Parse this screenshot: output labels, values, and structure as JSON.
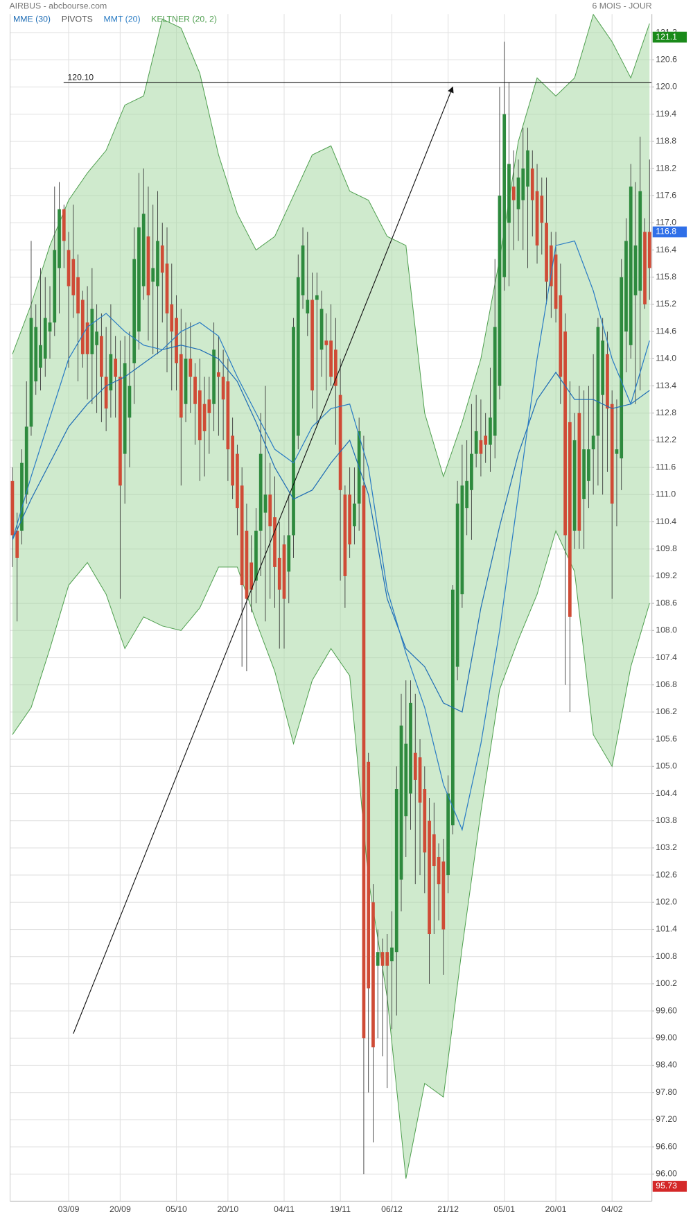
{
  "chart_data": {
    "type": "candlestick",
    "title": "AIRBUS - abcbourse.com",
    "subtitle": "6 MOIS - JOUR",
    "categories": [
      null,
      null,
      null,
      null,
      null,
      null,
      null,
      null,
      null,
      null,
      null,
      null,
      "03/09",
      null,
      null,
      null,
      null,
      null,
      null,
      null,
      null,
      null,
      null,
      "20/09",
      null,
      null,
      null,
      null,
      null,
      null,
      null,
      null,
      null,
      null,
      null,
      "05/10",
      null,
      null,
      null,
      null,
      null,
      null,
      null,
      null,
      null,
      null,
      "20/10",
      null,
      null,
      null,
      null,
      null,
      null,
      null,
      null,
      null,
      null,
      null,
      "04/11",
      null,
      null,
      null,
      null,
      null,
      null,
      null,
      null,
      null,
      null,
      null,
      "19/11",
      null,
      null,
      null,
      null,
      null,
      null,
      null,
      null,
      null,
      null,
      "06/12",
      null,
      null,
      null,
      null,
      null,
      null,
      null,
      null,
      null,
      null,
      null,
      "21/12",
      null,
      null,
      null,
      null,
      null,
      null,
      null,
      null,
      null,
      null,
      null,
      "05/01",
      null,
      null,
      null,
      null,
      null,
      null,
      null,
      null,
      null,
      null,
      "20/01",
      null,
      null,
      null,
      null,
      null,
      null,
      null,
      null,
      null,
      null,
      null,
      "04/02",
      null,
      null,
      null,
      null,
      null,
      null,
      null,
      null
    ],
    "ohlc": [
      [
        111.3,
        111.6,
        109.4,
        110.1
      ],
      [
        110.2,
        110.6,
        108.2,
        109.6
      ],
      [
        110.2,
        112.0,
        109.9,
        111.7
      ],
      [
        111.0,
        113.5,
        110.8,
        112.5
      ],
      [
        112.5,
        116.6,
        112.3,
        114.9
      ],
      [
        113.5,
        115.2,
        113.2,
        114.7
      ],
      [
        113.8,
        116.0,
        113.3,
        114.3
      ],
      [
        114.0,
        115.8,
        113.6,
        114.9
      ],
      [
        114.6,
        115.6,
        114.0,
        114.8
      ],
      [
        114.8,
        117.8,
        114.5,
        116.4
      ],
      [
        116.0,
        117.9,
        115.0,
        117.3
      ],
      [
        117.3,
        117.4,
        116.0,
        116.6
      ],
      [
        116.4,
        116.8,
        113.8,
        115.6
      ],
      [
        116.2,
        117.4,
        114.9,
        115.4
      ],
      [
        115.8,
        116.3,
        113.5,
        115.0
      ],
      [
        115.3,
        115.5,
        113.8,
        114.1
      ],
      [
        114.8,
        115.6,
        113.1,
        114.1
      ],
      [
        114.1,
        116.0,
        113.0,
        115.1
      ],
      [
        114.3,
        115.2,
        112.8,
        114.6
      ],
      [
        114.5,
        115.0,
        112.6,
        113.6
      ],
      [
        113.6,
        114.7,
        112.4,
        112.9
      ],
      [
        113.3,
        115.2,
        112.7,
        114.1
      ],
      [
        114.0,
        114.5,
        112.7,
        113.6
      ],
      [
        113.6,
        114.4,
        108.7,
        111.2
      ],
      [
        111.9,
        114.5,
        110.8,
        113.9
      ],
      [
        112.7,
        114.6,
        111.6,
        113.4
      ],
      [
        113.9,
        116.9,
        113.0,
        116.2
      ],
      [
        114.6,
        118.1,
        114.2,
        116.9
      ],
      [
        115.6,
        118.2,
        115.3,
        117.2
      ],
      [
        116.7,
        117.8,
        114.4,
        115.4
      ],
      [
        115.7,
        117.4,
        114.1,
        116.0
      ],
      [
        115.6,
        117.7,
        114.1,
        116.6
      ],
      [
        116.5,
        117.0,
        114.8,
        115.9
      ],
      [
        116.1,
        116.9,
        113.7,
        115.0
      ],
      [
        115.2,
        116.1,
        113.3,
        114.6
      ],
      [
        114.9,
        115.4,
        113.3,
        113.9
      ],
      [
        114.1,
        115.1,
        111.2,
        112.7
      ],
      [
        113.0,
        114.8,
        112.6,
        114.0
      ],
      [
        114.0,
        114.8,
        112.8,
        113.6
      ],
      [
        113.6,
        113.9,
        112.1,
        113.0
      ],
      [
        113.3,
        114.0,
        111.3,
        112.2
      ],
      [
        113.0,
        113.6,
        111.4,
        112.4
      ],
      [
        113.1,
        113.6,
        111.9,
        112.8
      ],
      [
        113.0,
        114.8,
        112.4,
        114.2
      ],
      [
        113.7,
        114.5,
        112.3,
        113.6
      ],
      [
        113.6,
        114.2,
        112.2,
        113.1
      ],
      [
        113.5,
        114.0,
        111.3,
        112.0
      ],
      [
        112.3,
        112.7,
        110.9,
        111.2
      ],
      [
        111.9,
        112.1,
        110.1,
        110.7
      ],
      [
        111.2,
        111.6,
        107.2,
        109.0
      ],
      [
        110.2,
        110.8,
        107.1,
        108.7
      ],
      [
        109.5,
        110.1,
        108.4,
        108.9
      ],
      [
        109.1,
        110.7,
        108.6,
        110.2
      ],
      [
        110.2,
        112.8,
        109.2,
        111.9
      ],
      [
        110.6,
        113.4,
        108.2,
        111.0
      ],
      [
        111.0,
        111.7,
        108.7,
        110.3
      ],
      [
        110.5,
        111.4,
        108.5,
        109.4
      ],
      [
        109.6,
        110.4,
        107.6,
        108.9
      ],
      [
        109.9,
        110.1,
        107.6,
        108.7
      ],
      [
        109.3,
        111.0,
        108.6,
        110.1
      ],
      [
        110.1,
        114.9,
        109.6,
        114.7
      ],
      [
        112.3,
        116.3,
        112.0,
        115.8
      ],
      [
        115.4,
        116.9,
        115.1,
        116.5
      ],
      [
        115.0,
        116.8,
        114.5,
        115.3
      ],
      [
        115.3,
        115.9,
        112.9,
        113.3
      ],
      [
        115.3,
        115.9,
        112.5,
        115.4
      ],
      [
        114.2,
        115.5,
        113.6,
        115.1
      ],
      [
        114.4,
        115.0,
        113.3,
        114.3
      ],
      [
        114.4,
        115.2,
        113.4,
        113.6
      ],
      [
        114.2,
        114.9,
        112.1,
        113.4
      ],
      [
        113.2,
        114.0,
        109.1,
        111.1
      ],
      [
        111.0,
        111.2,
        108.5,
        109.2
      ],
      [
        111.0,
        111.6,
        109.6,
        109.9
      ],
      [
        110.3,
        111.6,
        109.9,
        110.8
      ],
      [
        110.8,
        112.7,
        110.2,
        112.4
      ],
      [
        111.2,
        112.3,
        96.0,
        99.0
      ],
      [
        105.1,
        105.3,
        97.8,
        100.1
      ],
      [
        102.0,
        102.4,
        96.7,
        98.8
      ],
      [
        100.6,
        101.4,
        99.0,
        100.9
      ],
      [
        100.9,
        101.2,
        98.6,
        100.6
      ],
      [
        100.9,
        101.3,
        97.9,
        100.6
      ],
      [
        100.7,
        101.8,
        99.2,
        101.0
      ],
      [
        100.9,
        105.0,
        99.5,
        104.5
      ],
      [
        102.5,
        106.6,
        101.8,
        105.9
      ],
      [
        103.9,
        106.9,
        103.0,
        105.5
      ],
      [
        104.4,
        106.9,
        103.6,
        106.4
      ],
      [
        105.3,
        106.6,
        102.4,
        104.7
      ],
      [
        105.2,
        105.6,
        102.6,
        104.2
      ],
      [
        104.5,
        105.0,
        102.2,
        103.1
      ],
      [
        103.8,
        104.3,
        100.2,
        101.3
      ],
      [
        103.5,
        104.2,
        101.3,
        102.8
      ],
      [
        103.0,
        103.3,
        101.6,
        102.4
      ],
      [
        102.9,
        103.4,
        100.4,
        101.4
      ],
      [
        102.6,
        104.8,
        102.2,
        104.4
      ],
      [
        103.7,
        109.0,
        103.5,
        108.9
      ],
      [
        107.2,
        111.3,
        106.9,
        110.8
      ],
      [
        108.8,
        112.1,
        108.5,
        111.2
      ],
      [
        110.7,
        112.2,
        110.1,
        111.3
      ],
      [
        111.1,
        113.0,
        110.0,
        111.9
      ],
      [
        111.9,
        113.2,
        111.6,
        112.4
      ],
      [
        112.2,
        113.1,
        111.4,
        111.9
      ],
      [
        112.3,
        112.8,
        111.7,
        112.1
      ],
      [
        112.1,
        113.8,
        111.5,
        112.7
      ],
      [
        112.3,
        116.2,
        111.8,
        114.7
      ],
      [
        113.4,
        120.0,
        113.1,
        117.6
      ],
      [
        115.8,
        121.0,
        115.5,
        119.4
      ],
      [
        117.0,
        120.1,
        115.6,
        118.3
      ],
      [
        117.8,
        118.6,
        116.4,
        117.5
      ],
      [
        117.3,
        118.4,
        116.6,
        118.0
      ],
      [
        117.5,
        119.1,
        116.4,
        118.2
      ],
      [
        117.8,
        119.1,
        116.0,
        118.6
      ],
      [
        118.2,
        118.6,
        116.7,
        117.5
      ],
      [
        117.7,
        118.3,
        116.1,
        116.5
      ],
      [
        117.6,
        118.0,
        116.3,
        117.0
      ],
      [
        117.0,
        118.0,
        115.2,
        115.7
      ],
      [
        116.5,
        116.8,
        114.9,
        115.6
      ],
      [
        116.3,
        116.8,
        114.8,
        115.1
      ],
      [
        115.4,
        116.1,
        113.0,
        113.6
      ],
      [
        114.6,
        115.0,
        106.8,
        110.1
      ],
      [
        112.6,
        113.5,
        106.2,
        108.3
      ],
      [
        110.2,
        112.8,
        109.8,
        112.2
      ],
      [
        112.8,
        113.4,
        109.8,
        110.2
      ],
      [
        110.9,
        113.3,
        109.8,
        112.0
      ],
      [
        111.3,
        113.4,
        110.7,
        112.0
      ],
      [
        112.0,
        114.1,
        111.0,
        112.3
      ],
      [
        112.3,
        114.9,
        111.2,
        114.7
      ],
      [
        113.2,
        114.9,
        111.0,
        114.4
      ],
      [
        114.1,
        114.6,
        111.5,
        112.9
      ],
      [
        113.0,
        113.3,
        108.7,
        110.8
      ],
      [
        111.9,
        113.1,
        110.3,
        112.0
      ],
      [
        111.8,
        116.2,
        111.1,
        115.8
      ],
      [
        114.6,
        117.1,
        113.7,
        116.6
      ],
      [
        114.3,
        118.3,
        114.0,
        117.8
      ],
      [
        115.4,
        117.9,
        113.0,
        116.5
      ],
      [
        115.5,
        118.9,
        113.3,
        117.7
      ],
      [
        116.8,
        117.1,
        115.1,
        115.2
      ],
      [
        116.8,
        118.4,
        115.3,
        116.0
      ]
    ],
    "up_color": "#2e8a3e",
    "down_color": "#cf4b36",
    "series": [
      {
        "name": "MME (30)",
        "type": "line",
        "color": "#1f6db5",
        "x": [
          0,
          4,
          8,
          12,
          16,
          20,
          24,
          28,
          32,
          36,
          40,
          44,
          48,
          52,
          56,
          60,
          64,
          68,
          72,
          76,
          80,
          84,
          88,
          92,
          96,
          100,
          104,
          108,
          112,
          116,
          120,
          124,
          128,
          132,
          136
        ],
        "values": [
          110.0,
          110.9,
          111.7,
          112.5,
          113.0,
          113.4,
          113.6,
          113.9,
          114.2,
          114.3,
          114.2,
          114.0,
          113.5,
          112.6,
          111.6,
          110.9,
          111.1,
          111.7,
          112.2,
          111.0,
          108.7,
          107.6,
          107.2,
          106.4,
          106.2,
          108.5,
          110.3,
          111.9,
          113.1,
          113.7,
          113.1,
          113.1,
          112.9,
          113.0,
          113.3
        ]
      },
      {
        "name": "PIVOTS",
        "color": "#555555"
      },
      {
        "name": "MMT (20)",
        "type": "line",
        "color": "#2a7cc4",
        "x": [
          0,
          4,
          8,
          12,
          16,
          20,
          24,
          28,
          32,
          36,
          40,
          44,
          48,
          52,
          56,
          60,
          64,
          68,
          72,
          76,
          80,
          84,
          88,
          92,
          96,
          100,
          104,
          108,
          112,
          116,
          120,
          124,
          128,
          132,
          136
        ],
        "values": [
          110.0,
          111.4,
          112.7,
          114.0,
          114.7,
          115.0,
          114.6,
          114.3,
          114.2,
          114.6,
          114.8,
          114.5,
          113.6,
          112.8,
          112.0,
          111.7,
          112.5,
          112.9,
          113.0,
          111.6,
          108.9,
          107.5,
          106.3,
          104.6,
          103.6,
          105.5,
          108.0,
          111.0,
          114.0,
          116.5,
          116.6,
          115.5,
          114.0,
          113.0,
          114.4
        ]
      },
      {
        "name": "KELTNER (20, 2)",
        "type": "band",
        "color": "#4f9f4f",
        "x": [
          0,
          4,
          8,
          12,
          16,
          20,
          24,
          28,
          32,
          36,
          40,
          44,
          48,
          52,
          56,
          60,
          64,
          68,
          72,
          76,
          80,
          84,
          88,
          92,
          96,
          100,
          104,
          108,
          112,
          116,
          120,
          124,
          128,
          132,
          136
        ],
        "upper": [
          114.1,
          115.2,
          116.5,
          117.5,
          118.1,
          118.6,
          119.6,
          119.8,
          121.5,
          121.3,
          120.3,
          118.5,
          117.2,
          116.4,
          116.7,
          117.6,
          118.5,
          118.7,
          117.7,
          117.5,
          116.7,
          116.5,
          112.8,
          111.4,
          112.6,
          114.0,
          116.2,
          118.8,
          120.2,
          119.8,
          120.2,
          121.6,
          121.0,
          120.2,
          121.4
        ],
        "lower": [
          105.7,
          106.3,
          107.6,
          109.0,
          109.5,
          108.8,
          107.6,
          108.3,
          108.1,
          108.0,
          108.5,
          109.4,
          109.4,
          108.2,
          107.1,
          105.5,
          106.9,
          107.6,
          107.0,
          102.5,
          99.9,
          95.9,
          98.0,
          97.7,
          101.0,
          104.0,
          106.7,
          107.8,
          108.8,
          110.2,
          109.3,
          105.7,
          105.0,
          107.2,
          108.6
        ]
      }
    ],
    "ylim": [
      95.4,
      121.61
    ],
    "yticks": [
      121.2,
      120.6,
      {
        "value": 120.0,
        "label": "120.0"
      },
      119.4,
      118.8,
      118.2,
      117.6,
      {
        "value": 117.0,
        "label": "117.0"
      },
      116.4,
      115.8,
      115.2,
      114.6,
      {
        "value": 114.0,
        "label": "114.0"
      },
      113.4,
      112.8,
      112.2,
      111.6,
      {
        "value": 111.0,
        "label": "111.0"
      },
      110.4,
      109.8,
      109.2,
      108.6,
      {
        "value": 108.0,
        "label": "108.0"
      },
      107.4,
      106.8,
      106.2,
      105.6,
      {
        "value": 105.0,
        "label": "105.0"
      },
      104.4,
      103.8,
      103.2,
      102.6,
      {
        "value": 102.0,
        "label": "102.0"
      },
      101.4,
      100.8,
      100.2,
      {
        "value": 99.6,
        "label": "99.60"
      },
      {
        "value": 99.0,
        "label": "99.00"
      },
      {
        "value": 98.4,
        "label": "98.40"
      },
      {
        "value": 97.8,
        "label": "97.80"
      },
      {
        "value": 97.2,
        "label": "97.20"
      },
      {
        "value": 96.6,
        "label": "96.60"
      },
      {
        "value": 96.0,
        "label": "96.00"
      }
    ],
    "grid": true,
    "hline": {
      "value": 120.1,
      "label": "120.10"
    },
    "trendline": {
      "x": [
        13,
        94
      ],
      "y": [
        99.1,
        120.0
      ]
    },
    "price_markers": [
      {
        "value": 121.1,
        "color": "#1a8a1a"
      },
      {
        "value": 116.8,
        "color": "#2f6fe8"
      },
      {
        "value": 95.73,
        "color": "#d42828"
      }
    ]
  }
}
